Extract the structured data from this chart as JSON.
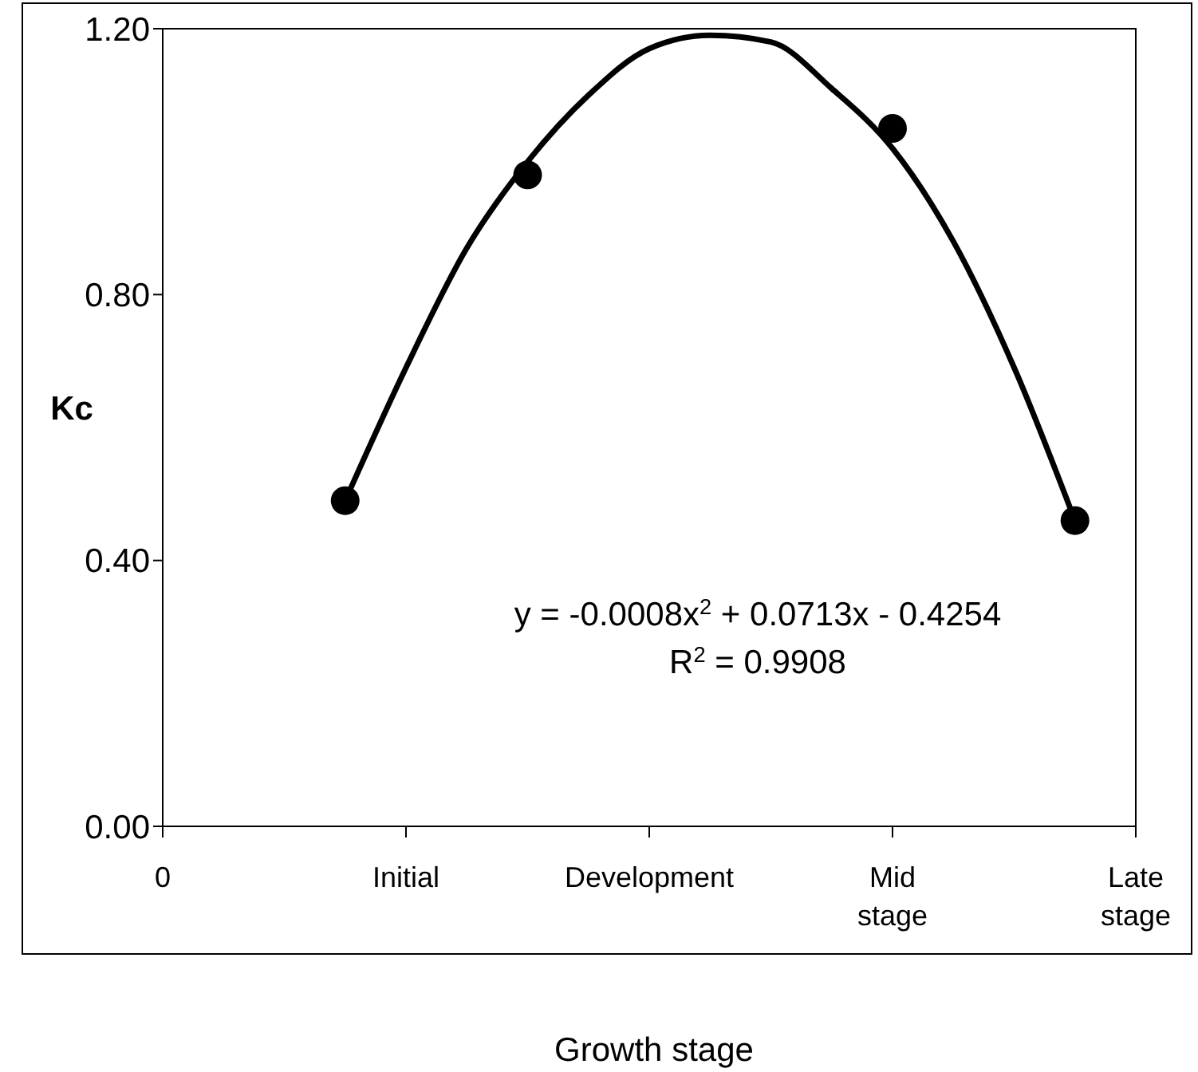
{
  "chart_data": {
    "type": "scatter",
    "xlabel": "Growth stage",
    "ylabel": "Kc",
    "categories": [
      "0",
      null,
      null,
      null,
      "Initial",
      null,
      null,
      null,
      "Development",
      null,
      null,
      null,
      "Mid stage",
      null,
      null,
      null,
      "Late stage"
    ],
    "ylim": [
      0,
      1.2
    ],
    "yticks": [
      {
        "value": 0,
        "label": "0.00"
      },
      {
        "value": 0.4,
        "label": "0.40"
      },
      {
        "value": 0.8,
        "label": "0.80"
      },
      {
        "value": 1.2,
        "label": "1.20"
      }
    ],
    "grid": false,
    "series": [
      {
        "color": "#000000",
        "marker": "circle",
        "values": [
          null,
          null,
          null,
          0.49,
          null,
          null,
          0.98,
          null,
          null,
          null,
          null,
          null,
          1.05,
          null,
          null,
          0.46,
          null
        ]
      },
      {
        "type": "line",
        "color": "#000000",
        "marker": "none",
        "line_style": "solid",
        "values": [
          null,
          null,
          null,
          0.49,
          0.69,
          0.87,
          1.0,
          1.1,
          1.17,
          1.19,
          1.18,
          1.11,
          1.02,
          0.88,
          0.69,
          0.46,
          null
        ]
      }
    ],
    "annotations": [
      "y = -0.0008x$^{2}$ + 0.0713x - 0.4254",
      "R$^{2}$ = 0.9908"
    ]
  }
}
